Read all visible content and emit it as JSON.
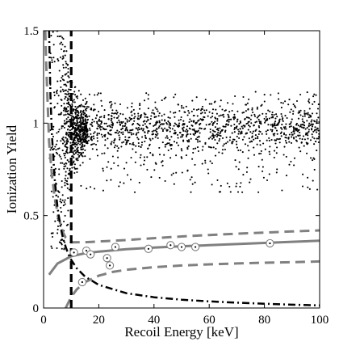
{
  "chart_data": {
    "type": "scatter",
    "title": "",
    "xlabel": "Recoil Energy [keV]",
    "ylabel": "Ionization Yield",
    "xlim": [
      0,
      100
    ],
    "ylim": [
      0,
      1.5
    ],
    "xticks": [
      0,
      20,
      40,
      60,
      80,
      100
    ],
    "xtick_labels": [
      "0",
      "20",
      "40",
      "60",
      "80",
      "100"
    ],
    "yticks": [
      0,
      0.5,
      1,
      1.5
    ],
    "ytick_labels": [
      "0",
      "0.5",
      "1",
      "1.5"
    ],
    "grid": false,
    "legend": "none",
    "colors": {
      "points": "#000000",
      "nuclear_band": "#808080",
      "threshold": "#000000",
      "candidates": "#808080"
    },
    "series": [
      {
        "role": "electron-recoil events (point cloud)",
        "x_range": [
          1,
          100
        ],
        "y_center": 1.0,
        "low_energy_funnel_x": [
          3,
          16
        ],
        "density": "dense"
      },
      {
        "role": "nuclear-recoil band center",
        "style": "solid-gray",
        "x": [
          2,
          5,
          10,
          15,
          20,
          30,
          40,
          50,
          60,
          70,
          80,
          90,
          100
        ],
        "y": [
          0.18,
          0.24,
          0.28,
          0.296,
          0.305,
          0.318,
          0.327,
          0.334,
          0.34,
          0.346,
          0.352,
          0.358,
          0.364
        ]
      },
      {
        "role": "nuclear-recoil band upper edge",
        "style": "dashed-gray",
        "x": [
          0.6,
          1,
          2,
          3,
          4,
          5,
          6,
          7,
          8,
          10,
          15,
          20,
          30,
          40,
          50,
          60,
          70,
          80,
          90,
          100
        ],
        "y": [
          1.5,
          1.3,
          0.9,
          0.72,
          0.6,
          0.52,
          0.46,
          0.41,
          0.38,
          0.355,
          0.356,
          0.36,
          0.368,
          0.378,
          0.387,
          0.395,
          0.402,
          0.408,
          0.414,
          0.42
        ]
      },
      {
        "role": "nuclear-recoil band lower edge",
        "style": "dashed-gray",
        "x": [
          8,
          10,
          12,
          15,
          20,
          25,
          30,
          40,
          50,
          60,
          70,
          80,
          90,
          100
        ],
        "y": [
          0.0,
          0.06,
          0.1,
          0.14,
          0.175,
          0.195,
          0.207,
          0.221,
          0.23,
          0.236,
          0.241,
          0.245,
          0.248,
          0.252
        ]
      },
      {
        "role": "ionization threshold",
        "style": "dash-dot-black",
        "x": [
          2,
          2.5,
          3,
          4,
          5,
          6,
          7,
          8,
          9,
          10,
          12,
          15,
          20,
          30,
          40,
          50,
          60,
          70,
          80,
          90,
          100
        ],
        "y": [
          1.5,
          1.15,
          0.94,
          0.7,
          0.55,
          0.45,
          0.38,
          0.33,
          0.29,
          0.26,
          0.215,
          0.17,
          0.125,
          0.08,
          0.058,
          0.045,
          0.036,
          0.029,
          0.023,
          0.018,
          0.014
        ]
      },
      {
        "role": "recoil energy threshold",
        "style": "dashed-black",
        "x": [
          10,
          10
        ],
        "y": [
          0,
          1.5
        ]
      },
      {
        "role": "candidate events (circled)",
        "x": [
          11,
          14,
          15.5,
          17,
          23,
          24,
          26,
          38,
          46,
          50,
          55,
          82
        ],
        "y": [
          0.3,
          0.14,
          0.31,
          0.29,
          0.27,
          0.23,
          0.33,
          0.32,
          0.34,
          0.33,
          0.33,
          0.35
        ]
      }
    ]
  }
}
